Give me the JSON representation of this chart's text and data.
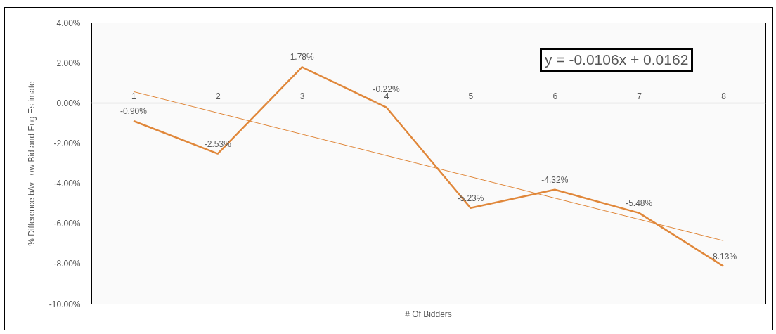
{
  "chart_data": {
    "type": "line",
    "xlabel": "# Of Bidders",
    "ylabel": "% Difference b/w Low Bid and Eng Estimate",
    "x": [
      1,
      2,
      3,
      4,
      5,
      6,
      7,
      8
    ],
    "xlim": [
      0.5,
      8.5
    ],
    "xticks": [
      1,
      2,
      3,
      4,
      5,
      6,
      7,
      8
    ],
    "ylim": [
      -10,
      4
    ],
    "yticks": [
      {
        "value": 4,
        "label": "4.00%"
      },
      {
        "value": 2,
        "label": "2.00%"
      },
      {
        "value": 0,
        "label": "0.00%"
      },
      {
        "value": -2,
        "label": "-2.00%"
      },
      {
        "value": -4,
        "label": "-4.00%"
      },
      {
        "value": -6,
        "label": "-6.00%"
      },
      {
        "value": -8,
        "label": "-8.00%"
      },
      {
        "value": -10,
        "label": "-10.00%"
      }
    ],
    "series": [
      {
        "color": "#e0873a",
        "values": [
          -0.9,
          -2.53,
          1.78,
          -0.22,
          -5.23,
          -4.32,
          -5.48,
          -8.13
        ],
        "value_labels": [
          "-0.90%",
          "-2.53%",
          "1.78%",
          "-0.22%",
          "-5.23%",
          "-4.32%",
          "-5.48%",
          "-8.13%"
        ]
      },
      {
        "type": "line",
        "color": "#e0873a",
        "x": [
          1,
          8
        ],
        "values": [
          0.56,
          -6.86
        ]
      }
    ],
    "annotations": [
      "y = -0.0106x + 0.0162"
    ]
  }
}
